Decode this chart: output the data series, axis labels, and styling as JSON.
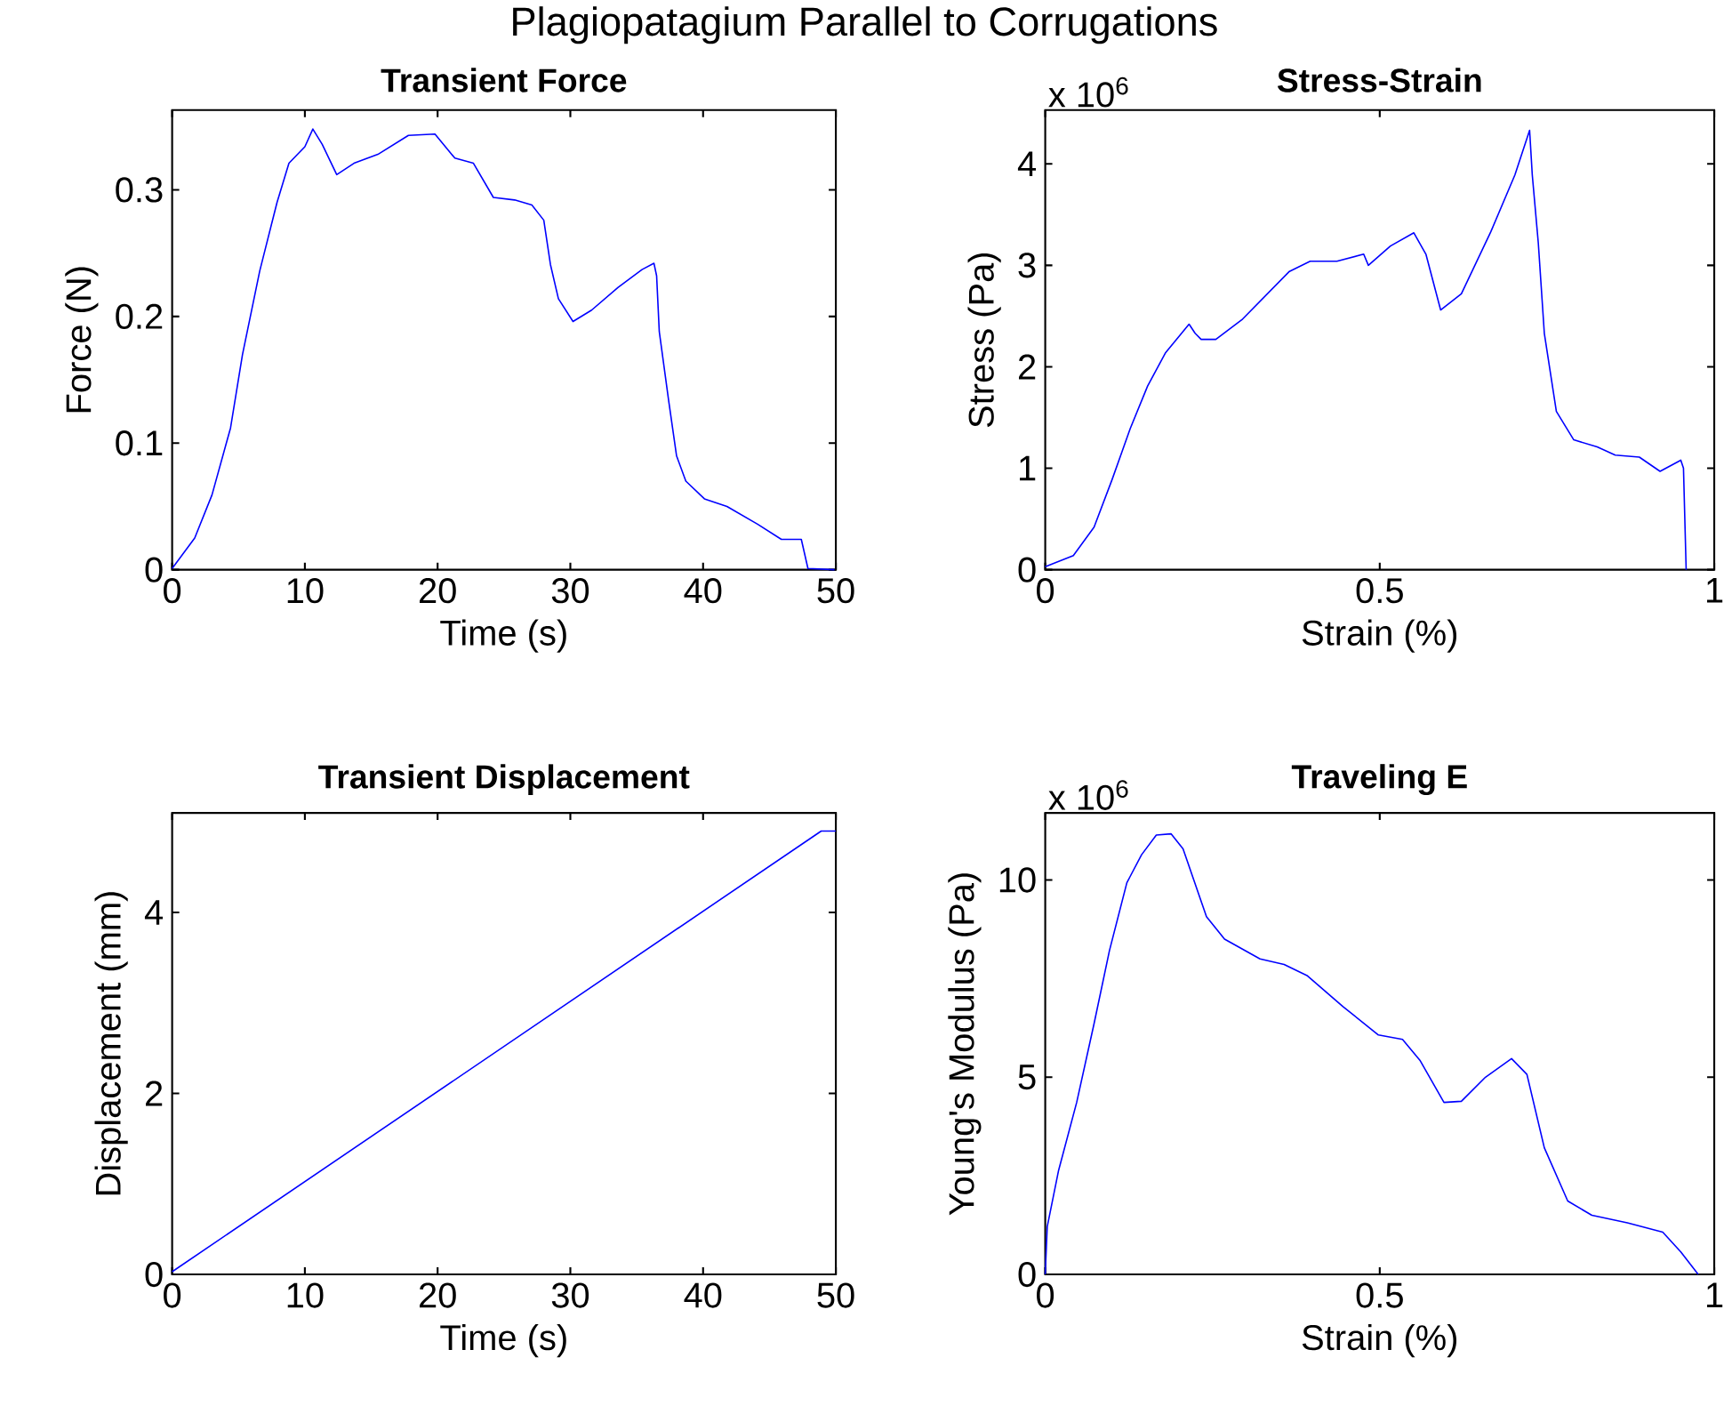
{
  "chart_data": [
    {
      "type": "line",
      "title": "Transient Force",
      "xlabel": "Time (s)",
      "ylabel": "Force (N)",
      "color": "#0000ff",
      "annotations": [
        "Plagiopatagium Parallel to Corrugations"
      ],
      "xlim": [
        0,
        50
      ],
      "ylim": [
        0,
        0.363
      ],
      "xticks": [
        0,
        10,
        20,
        30,
        40,
        50
      ],
      "yticks": [
        0,
        0.1,
        0.2,
        0.3
      ],
      "x": [
        0,
        1.7,
        3,
        4.4,
        5.3,
        6.6,
        7.9,
        8.8,
        10,
        10.6,
        11.3,
        12.4,
        13.7,
        15.5,
        17.8,
        19.8,
        21.3,
        22.7,
        24.2,
        25.8,
        27.1,
        28,
        28.5,
        29.1,
        30.2,
        31.6,
        33.6,
        35.4,
        36.3,
        36.5,
        36.7,
        37.4,
        38,
        38.7,
        40.1,
        41.8,
        44.1,
        45.9,
        47.4,
        47.9,
        49.9
      ],
      "values": [
        0.001,
        0.025,
        0.059,
        0.112,
        0.17,
        0.236,
        0.29,
        0.321,
        0.334,
        0.348,
        0.336,
        0.312,
        0.321,
        0.328,
        0.343,
        0.344,
        0.325,
        0.321,
        0.294,
        0.292,
        0.288,
        0.276,
        0.241,
        0.214,
        0.196,
        0.205,
        0.223,
        0.237,
        0.242,
        0.232,
        0.188,
        0.134,
        0.09,
        0.07,
        0.056,
        0.05,
        0.036,
        0.024,
        0.024,
        0.001,
        0
      ]
    },
    {
      "type": "line",
      "title": "Stress-Strain",
      "xlabel": "Strain (%)",
      "ylabel": "Stress (Pa)",
      "color": "#0000ff",
      "annotations": [
        "x 10$^{6}$"
      ],
      "xlim": [
        0,
        1
      ],
      "ylim": [
        0,
        4.53
      ],
      "xticks": [
        0,
        0.5,
        1
      ],
      "yticks": [
        0,
        1,
        2,
        3,
        4
      ],
      "x": [
        0,
        0.042,
        0.073,
        0.1,
        0.127,
        0.153,
        0.18,
        0.215,
        0.224,
        0.233,
        0.255,
        0.295,
        0.365,
        0.396,
        0.436,
        0.476,
        0.483,
        0.516,
        0.551,
        0.569,
        0.591,
        0.622,
        0.666,
        0.702,
        0.724,
        0.728,
        0.737,
        0.746,
        0.764,
        0.79,
        0.825,
        0.852,
        0.888,
        0.919,
        0.95,
        0.954,
        0.958
      ],
      "values": [
        0.03,
        0.14,
        0.42,
        0.89,
        1.39,
        1.81,
        2.14,
        2.42,
        2.33,
        2.27,
        2.27,
        2.47,
        2.94,
        3.04,
        3.04,
        3.11,
        3.0,
        3.19,
        3.32,
        3.11,
        2.56,
        2.72,
        3.33,
        3.89,
        4.33,
        3.89,
        3.22,
        2.33,
        1.56,
        1.28,
        1.21,
        1.13,
        1.11,
        0.97,
        1.08,
        1.0,
        0
      ]
    },
    {
      "type": "line",
      "title": "Transient Displacement",
      "xlabel": "Time (s)",
      "ylabel": "Displacement (mm)",
      "color": "#0000ff",
      "xlim": [
        0,
        50
      ],
      "ylim": [
        0,
        5.1
      ],
      "xticks": [
        0,
        10,
        20,
        30,
        40,
        50
      ],
      "yticks": [
        0,
        2,
        4
      ],
      "x": [
        0,
        48.9,
        50
      ],
      "values": [
        0.03,
        4.9,
        4.9
      ]
    },
    {
      "type": "line",
      "title": "Traveling E",
      "xlabel": "Strain (%)",
      "ylabel": "Young's Modulus (Pa)",
      "color": "#0000ff",
      "annotations": [
        "x 10$^{6}$"
      ],
      "xlim": [
        0,
        1
      ],
      "ylim": [
        0,
        11.7
      ],
      "xticks": [
        0,
        0.5,
        1
      ],
      "yticks": [
        0,
        5,
        10
      ],
      "x": [
        0,
        0.003,
        0.02,
        0.047,
        0.073,
        0.096,
        0.122,
        0.144,
        0.166,
        0.188,
        0.206,
        0.241,
        0.268,
        0.321,
        0.357,
        0.392,
        0.445,
        0.498,
        0.534,
        0.56,
        0.596,
        0.622,
        0.658,
        0.697,
        0.72,
        0.746,
        0.781,
        0.817,
        0.87,
        0.923,
        0.95,
        0.976
      ],
      "values": [
        0,
        1.21,
        2.64,
        4.36,
        6.36,
        8.21,
        9.93,
        10.64,
        11.14,
        11.17,
        10.79,
        9.07,
        8.5,
        8.0,
        7.86,
        7.57,
        6.79,
        6.07,
        5.96,
        5.43,
        4.36,
        4.39,
        5.0,
        5.47,
        5.07,
        3.21,
        1.86,
        1.5,
        1.31,
        1.07,
        0.57,
        0
      ]
    }
  ]
}
